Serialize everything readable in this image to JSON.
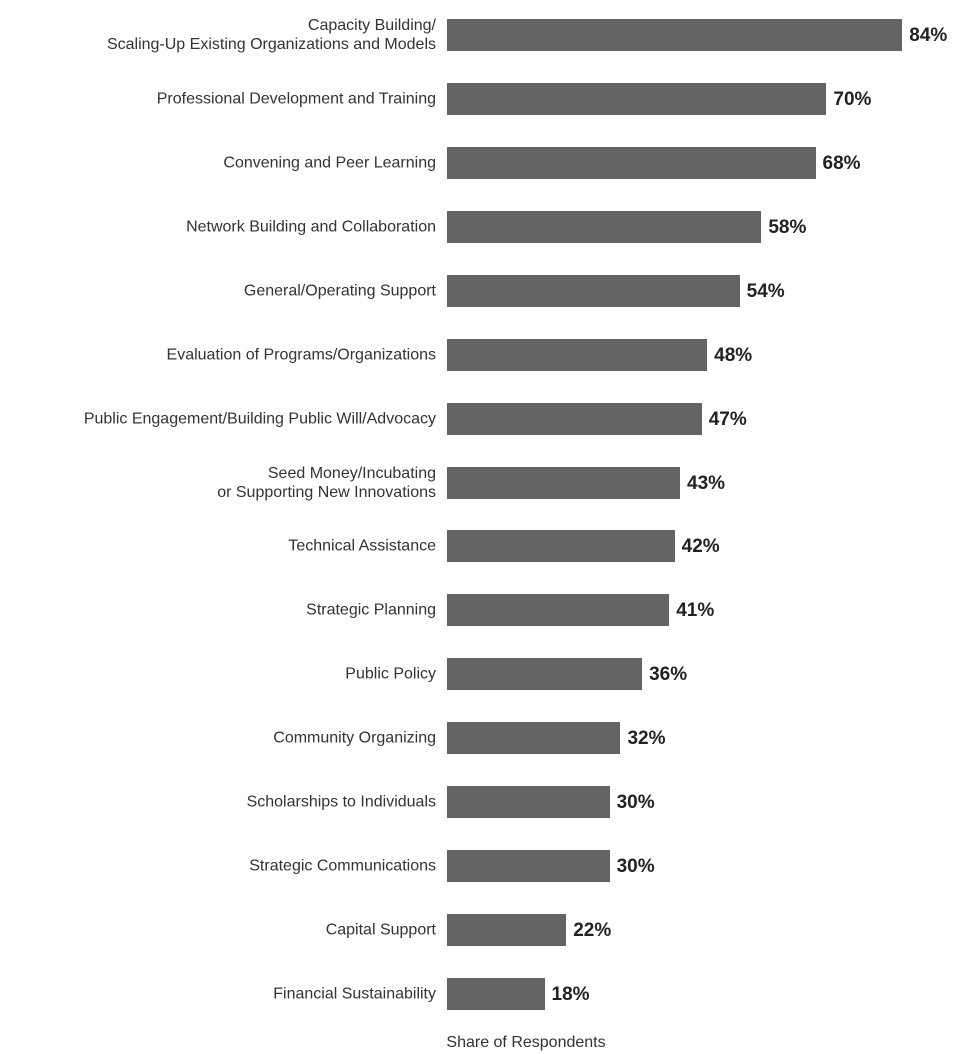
{
  "chart_data": {
    "type": "bar",
    "orientation": "horizontal",
    "categories": [
      "Capacity Building/\nScaling-Up Existing Organizations and Models",
      "Professional Development and Training",
      "Convening and Peer Learning",
      "Network Building and Collaboration",
      "General/Operating Support",
      "Evaluation of Programs/Organizations",
      "Public Engagement/Building Public Will/Advocacy",
      "Seed Money/Incubating\nor Supporting New Innovations",
      "Technical Assistance",
      "Strategic Planning",
      "Public Policy",
      "Community Organizing",
      "Scholarships to Individuals",
      "Strategic Communications",
      "Capital Support",
      "Financial Sustainability"
    ],
    "values": [
      84,
      70,
      68,
      58,
      54,
      48,
      47,
      43,
      42,
      41,
      36,
      32,
      30,
      30,
      22,
      18
    ],
    "value_labels": [
      "84%",
      "70%",
      "68%",
      "58%",
      "54%",
      "48%",
      "47%",
      "43%",
      "42%",
      "41%",
      "36%",
      "32%",
      "30%",
      "30%",
      "22%",
      "18%"
    ],
    "color": "#646464",
    "xlabel": "Share of Respondents"
  }
}
